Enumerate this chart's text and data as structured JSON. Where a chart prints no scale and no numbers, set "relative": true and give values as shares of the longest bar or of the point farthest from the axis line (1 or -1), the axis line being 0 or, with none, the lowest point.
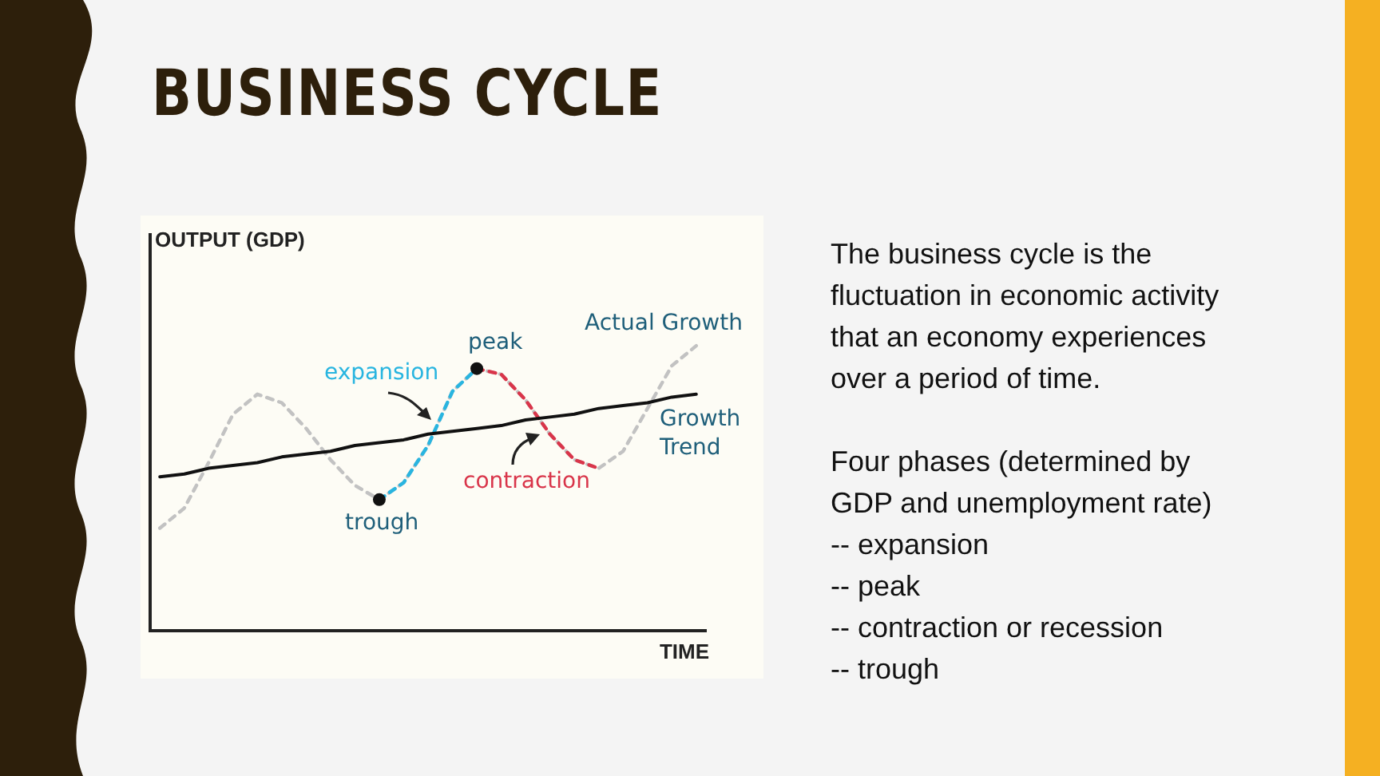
{
  "chart_data": {
    "type": "line",
    "title": "BUSINESS CYCLE",
    "xlabel": "TIME",
    "ylabel": "OUTPUT (GDP)",
    "relative": true,
    "grid": false,
    "legend": false,
    "marker": "none",
    "line_style": "dashed",
    "categories": [
      null,
      null,
      null,
      null,
      null,
      null,
      null,
      null,
      null,
      null,
      null,
      null,
      null,
      null,
      null,
      null,
      null,
      null,
      null,
      null,
      null,
      null,
      null
    ],
    "series": [
      {
        "color": "#c2c2c2",
        "values": [
          0.36,
          0.43,
          0.59,
          0.76,
          0.83,
          0.8,
          0.71,
          0.6,
          0.51,
          0.46,
          0.52,
          0.65,
          0.84,
          0.92,
          0.9,
          0.81,
          0.69,
          0.6,
          0.57,
          0.63,
          0.78,
          0.93,
          1.0
        ]
      },
      {
        "color": "#29b5e0",
        "values": [
          null,
          null,
          null,
          null,
          null,
          null,
          null,
          null,
          null,
          0.46,
          0.52,
          0.65,
          0.84,
          0.92,
          null,
          null,
          null,
          null,
          null,
          null,
          null,
          null,
          null
        ]
      },
      {
        "color": "#d9354a",
        "values": [
          null,
          null,
          null,
          null,
          null,
          null,
          null,
          null,
          null,
          null,
          null,
          null,
          null,
          0.92,
          0.9,
          0.81,
          0.69,
          0.6,
          0.57,
          null,
          null,
          null,
          null
        ]
      },
      {
        "color": "#111111",
        "line_style": "solid",
        "values": [
          0.54,
          0.55,
          0.57,
          0.58,
          0.59,
          0.61,
          0.62,
          0.63,
          0.65,
          0.66,
          0.67,
          0.69,
          0.7,
          0.71,
          0.72,
          0.74,
          0.75,
          0.76,
          0.78,
          0.79,
          0.8,
          0.82,
          0.83
        ]
      }
    ],
    "annotations": [
      "Actual Growth",
      {
        "text": "peak",
        "y": 0.92
      },
      "expansion",
      "Growth Trend",
      "contraction",
      {
        "text": "trough",
        "y": 0.46
      },
      "The business cycle is the fluctuation in economic activity that an economy experiences over a period of time.",
      "Four phases (determined by GDP and unemployment rate)",
      "-- expansion",
      "-- peak",
      "-- contraction or recession",
      "-- trough"
    ]
  }
}
